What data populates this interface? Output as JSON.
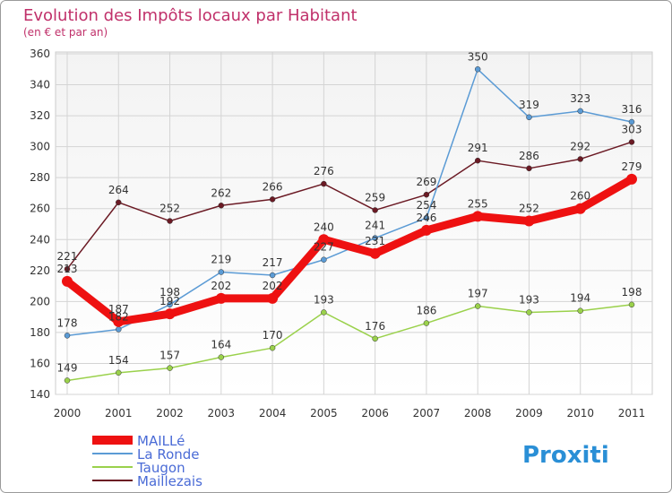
{
  "title": "Evolution des Impôts locaux par Habitant",
  "subtitle": "(en € et par an)",
  "logo_text": "Proxiti",
  "colors": {
    "title": "#c0306a",
    "axis_text": "#333333",
    "grid": "#cccccc",
    "frame": "#9a9a9a"
  },
  "chart_data": {
    "type": "line",
    "title": "Evolution des Impôts locaux par Habitant",
    "subtitle": "(en € et par an)",
    "categories": [
      "2000",
      "2001",
      "2002",
      "2003",
      "2004",
      "2005",
      "2006",
      "2007",
      "2008",
      "2009",
      "2010",
      "2011"
    ],
    "ylim": [
      140,
      360
    ],
    "yticks": [
      140,
      160,
      180,
      200,
      220,
      240,
      260,
      280,
      300,
      320,
      340,
      360
    ],
    "grid": true,
    "legend_position": "bottom-left",
    "series": [
      {
        "name": "Maillezais",
        "color": "#6b1a24",
        "values": [
          221,
          264,
          252,
          262,
          266,
          276,
          259,
          269,
          291,
          286,
          292,
          303
        ]
      },
      {
        "name": "La Ronde",
        "color": "#5b9bd5",
        "values": [
          178,
          182,
          198,
          219,
          217,
          227,
          241,
          254,
          350,
          319,
          323,
          316
        ]
      },
      {
        "name": "Taugon",
        "color": "#9ad14b",
        "values": [
          149,
          154,
          157,
          164,
          170,
          193,
          176,
          186,
          197,
          193,
          194,
          198
        ]
      },
      {
        "name": "MAILLé",
        "color": "#ee1111",
        "values": [
          213,
          187,
          192,
          202,
          202,
          240,
          231,
          246,
          255,
          252,
          260,
          279
        ]
      }
    ],
    "legend": [
      "MAILLé",
      "La Ronde",
      "Taugon",
      "Maillezais"
    ]
  }
}
